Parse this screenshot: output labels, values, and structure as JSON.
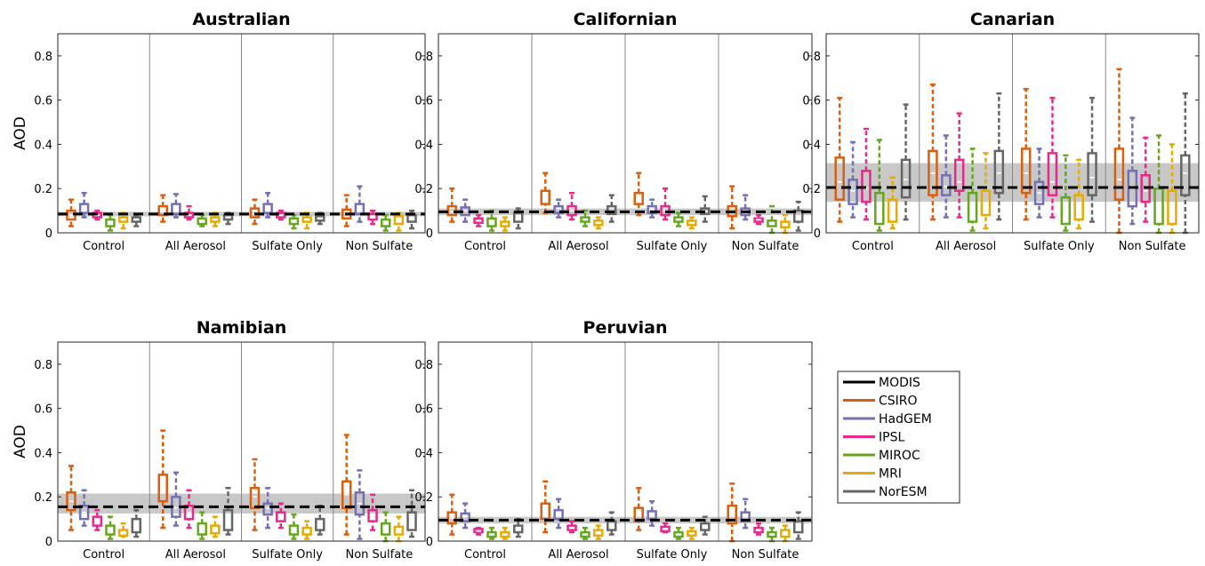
{
  "chart_data": {
    "type": "boxplot",
    "ylabel": "AOD",
    "ylim": [
      0,
      0.9
    ],
    "yticks": [
      0,
      0.2,
      0.4,
      0.6,
      0.8
    ],
    "categories": [
      "Control",
      "All Aerosol",
      "Sulfate Only",
      "Non Sulfate"
    ],
    "models": [
      "CSIRO",
      "HadGEM",
      "IPSL",
      "MIROC",
      "MRI",
      "NorESM"
    ],
    "legend": {
      "placement": "right",
      "entries": [
        {
          "name": "MODIS",
          "color": "#000000",
          "style": "line"
        },
        {
          "name": "CSIRO",
          "color": "#D95F0E"
        },
        {
          "name": "HadGEM",
          "color": "#7570B3"
        },
        {
          "name": "IPSL",
          "color": "#E7298A"
        },
        {
          "name": "MIROC",
          "color": "#66A61E"
        },
        {
          "name": "MRI",
          "color": "#E6AB02"
        },
        {
          "name": "NorESM",
          "color": "#666666"
        }
      ]
    },
    "panels": [
      {
        "title": "Australian",
        "modis": {
          "median": 0.085,
          "band": [
            0.075,
            0.095
          ]
        },
        "groups": [
          [
            [
              0.03,
              0.06,
              0.08,
              0.1,
              0.15
            ],
            [
              0.07,
              0.09,
              0.105,
              0.13,
              0.18
            ],
            [
              0.06,
              0.07,
              0.08,
              0.09,
              0.1
            ],
            [
              0.01,
              0.03,
              0.045,
              0.06,
              0.08
            ],
            [
              0.02,
              0.05,
              0.06,
              0.07,
              0.09
            ],
            [
              0.03,
              0.05,
              0.06,
              0.07,
              0.08
            ]
          ],
          [
            [
              0.05,
              0.08,
              0.095,
              0.12,
              0.17
            ],
            [
              0.07,
              0.085,
              0.1,
              0.13,
              0.175
            ],
            [
              0.06,
              0.07,
              0.08,
              0.09,
              0.12
            ],
            [
              0.03,
              0.04,
              0.05,
              0.065,
              0.08
            ],
            [
              0.03,
              0.05,
              0.06,
              0.07,
              0.09
            ],
            [
              0.04,
              0.06,
              0.07,
              0.08,
              0.09
            ]
          ],
          [
            [
              0.04,
              0.07,
              0.085,
              0.11,
              0.15
            ],
            [
              0.07,
              0.09,
              0.105,
              0.13,
              0.18
            ],
            [
              0.06,
              0.07,
              0.08,
              0.09,
              0.1
            ],
            [
              0.02,
              0.04,
              0.05,
              0.065,
              0.08
            ],
            [
              0.02,
              0.05,
              0.06,
              0.07,
              0.09
            ],
            [
              0.04,
              0.055,
              0.065,
              0.075,
              0.09
            ]
          ],
          [
            [
              0.03,
              0.065,
              0.085,
              0.105,
              0.17
            ],
            [
              0.05,
              0.085,
              0.105,
              0.13,
              0.21
            ],
            [
              0.04,
              0.06,
              0.075,
              0.085,
              0.1
            ],
            [
              0.01,
              0.03,
              0.045,
              0.06,
              0.08
            ],
            [
              0.01,
              0.04,
              0.06,
              0.075,
              0.09
            ],
            [
              0.02,
              0.05,
              0.065,
              0.08,
              0.1
            ]
          ]
        ]
      },
      {
        "title": "Californian",
        "modis": {
          "median": 0.095,
          "band": [
            0.08,
            0.11
          ]
        },
        "groups": [
          [
            [
              0.05,
              0.08,
              0.095,
              0.12,
              0.2
            ],
            [
              0.05,
              0.08,
              0.1,
              0.115,
              0.15
            ],
            [
              0.03,
              0.045,
              0.055,
              0.065,
              0.08
            ],
            [
              0.01,
              0.03,
              0.045,
              0.065,
              0.1
            ],
            [
              0.01,
              0.03,
              0.04,
              0.05,
              0.07
            ],
            [
              0.02,
              0.05,
              0.07,
              0.09,
              0.11
            ]
          ],
          [
            [
              0.09,
              0.13,
              0.16,
              0.19,
              0.27
            ],
            [
              0.07,
              0.09,
              0.11,
              0.12,
              0.15
            ],
            [
              0.06,
              0.08,
              0.1,
              0.12,
              0.18
            ],
            [
              0.03,
              0.05,
              0.06,
              0.07,
              0.1
            ],
            [
              0.02,
              0.035,
              0.045,
              0.055,
              0.07
            ],
            [
              0.05,
              0.085,
              0.1,
              0.12,
              0.17
            ]
          ],
          [
            [
              0.08,
              0.13,
              0.16,
              0.18,
              0.27
            ],
            [
              0.07,
              0.09,
              0.105,
              0.12,
              0.15
            ],
            [
              0.06,
              0.08,
              0.1,
              0.12,
              0.2
            ],
            [
              0.03,
              0.05,
              0.06,
              0.07,
              0.09
            ],
            [
              0.02,
              0.035,
              0.045,
              0.055,
              0.07
            ],
            [
              0.05,
              0.085,
              0.095,
              0.11,
              0.165
            ]
          ],
          [
            [
              0.02,
              0.075,
              0.1,
              0.12,
              0.21
            ],
            [
              0.06,
              0.08,
              0.095,
              0.11,
              0.17
            ],
            [
              0.04,
              0.05,
              0.06,
              0.065,
              0.08
            ],
            [
              0.0,
              0.03,
              0.045,
              0.055,
              0.12
            ],
            [
              0.0,
              0.025,
              0.04,
              0.05,
              0.08
            ],
            [
              0.01,
              0.05,
              0.075,
              0.1,
              0.14
            ]
          ]
        ]
      },
      {
        "title": "Canarian",
        "modis": {
          "median": 0.205,
          "band": [
            0.14,
            0.315
          ]
        },
        "groups": [
          [
            [
              0.05,
              0.15,
              0.23,
              0.34,
              0.61
            ],
            [
              0.07,
              0.13,
              0.19,
              0.24,
              0.41
            ],
            [
              0.06,
              0.14,
              0.2,
              0.28,
              0.47
            ],
            [
              0.01,
              0.04,
              0.09,
              0.18,
              0.42
            ],
            [
              0.02,
              0.05,
              0.08,
              0.15,
              0.25
            ],
            [
              0.06,
              0.16,
              0.24,
              0.33,
              0.58
            ]
          ],
          [
            [
              0.06,
              0.17,
              0.27,
              0.37,
              0.67
            ],
            [
              0.07,
              0.17,
              0.21,
              0.26,
              0.44
            ],
            [
              0.07,
              0.19,
              0.23,
              0.33,
              0.54
            ],
            [
              0.01,
              0.05,
              0.08,
              0.18,
              0.38
            ],
            [
              0.02,
              0.08,
              0.12,
              0.19,
              0.36
            ],
            [
              0.06,
              0.18,
              0.27,
              0.37,
              0.63
            ]
          ],
          [
            [
              0.06,
              0.18,
              0.27,
              0.38,
              0.65
            ],
            [
              0.07,
              0.13,
              0.18,
              0.23,
              0.38
            ],
            [
              0.07,
              0.17,
              0.23,
              0.36,
              0.61
            ],
            [
              0.01,
              0.04,
              0.08,
              0.16,
              0.35
            ],
            [
              0.02,
              0.06,
              0.1,
              0.17,
              0.33
            ],
            [
              0.05,
              0.17,
              0.25,
              0.36,
              0.61
            ]
          ],
          [
            [
              0.0,
              0.15,
              0.24,
              0.38,
              0.74
            ],
            [
              0.04,
              0.12,
              0.2,
              0.28,
              0.52
            ],
            [
              0.05,
              0.14,
              0.19,
              0.26,
              0.43
            ],
            [
              0.0,
              0.04,
              0.07,
              0.2,
              0.44
            ],
            [
              0.0,
              0.04,
              0.07,
              0.19,
              0.4
            ],
            [
              0.0,
              0.17,
              0.27,
              0.35,
              0.63
            ]
          ]
        ]
      },
      {
        "title": "Namibian",
        "modis": {
          "median": 0.155,
          "band": [
            0.125,
            0.215
          ]
        },
        "groups": [
          [
            [
              0.05,
              0.14,
              0.18,
              0.22,
              0.34
            ],
            [
              0.07,
              0.1,
              0.13,
              0.16,
              0.23
            ],
            [
              0.05,
              0.07,
              0.09,
              0.11,
              0.14
            ],
            [
              0.01,
              0.03,
              0.045,
              0.07,
              0.11
            ],
            [
              0.02,
              0.025,
              0.035,
              0.05,
              0.08
            ],
            [
              0.02,
              0.04,
              0.07,
              0.1,
              0.14
            ]
          ],
          [
            [
              0.06,
              0.18,
              0.24,
              0.3,
              0.5
            ],
            [
              0.07,
              0.11,
              0.15,
              0.2,
              0.31
            ],
            [
              0.06,
              0.1,
              0.13,
              0.16,
              0.23
            ],
            [
              0.01,
              0.03,
              0.055,
              0.08,
              0.13
            ],
            [
              0.02,
              0.035,
              0.05,
              0.07,
              0.11
            ],
            [
              0.03,
              0.05,
              0.08,
              0.14,
              0.24
            ]
          ],
          [
            [
              0.05,
              0.15,
              0.2,
              0.24,
              0.37
            ],
            [
              0.06,
              0.12,
              0.15,
              0.17,
              0.24
            ],
            [
              0.06,
              0.09,
              0.11,
              0.13,
              0.17
            ],
            [
              0.01,
              0.03,
              0.05,
              0.07,
              0.12
            ],
            [
              0.01,
              0.03,
              0.045,
              0.06,
              0.09
            ],
            [
              0.03,
              0.05,
              0.075,
              0.1,
              0.16
            ]
          ],
          [
            [
              0.03,
              0.15,
              0.21,
              0.27,
              0.48
            ],
            [
              0.01,
              0.12,
              0.17,
              0.22,
              0.32
            ],
            [
              0.05,
              0.09,
              0.115,
              0.14,
              0.21
            ],
            [
              0.0,
              0.03,
              0.055,
              0.08,
              0.13
            ],
            [
              0.0,
              0.03,
              0.05,
              0.065,
              0.11
            ],
            [
              0.02,
              0.05,
              0.08,
              0.13,
              0.23
            ]
          ]
        ]
      },
      {
        "title": "Peruvian",
        "modis": {
          "median": 0.095,
          "band": [
            0.08,
            0.11
          ]
        },
        "groups": [
          [
            [
              0.03,
              0.08,
              0.105,
              0.13,
              0.21
            ],
            [
              0.06,
              0.09,
              0.11,
              0.125,
              0.17
            ],
            [
              0.03,
              0.04,
              0.045,
              0.055,
              0.06
            ],
            [
              0.01,
              0.02,
              0.03,
              0.04,
              0.06
            ],
            [
              0.01,
              0.02,
              0.03,
              0.04,
              0.06
            ],
            [
              0.02,
              0.04,
              0.055,
              0.07,
              0.1
            ]
          ],
          [
            [
              0.04,
              0.1,
              0.14,
              0.17,
              0.27
            ],
            [
              0.06,
              0.1,
              0.12,
              0.14,
              0.19
            ],
            [
              0.04,
              0.05,
              0.06,
              0.07,
              0.09
            ],
            [
              0.01,
              0.02,
              0.03,
              0.04,
              0.06
            ],
            [
              0.01,
              0.025,
              0.035,
              0.05,
              0.07
            ],
            [
              0.03,
              0.05,
              0.07,
              0.09,
              0.13
            ]
          ],
          [
            [
              0.05,
              0.09,
              0.12,
              0.15,
              0.24
            ],
            [
              0.07,
              0.1,
              0.12,
              0.135,
              0.18
            ],
            [
              0.04,
              0.045,
              0.055,
              0.065,
              0.08
            ],
            [
              0.01,
              0.02,
              0.03,
              0.04,
              0.06
            ],
            [
              0.01,
              0.025,
              0.035,
              0.045,
              0.06
            ],
            [
              0.03,
              0.05,
              0.065,
              0.08,
              0.11
            ]
          ],
          [
            [
              0.0,
              0.08,
              0.12,
              0.16,
              0.26
            ],
            [
              0.06,
              0.09,
              0.11,
              0.13,
              0.19
            ],
            [
              0.03,
              0.04,
              0.05,
              0.06,
              0.08
            ],
            [
              0.0,
              0.02,
              0.03,
              0.04,
              0.06
            ],
            [
              0.0,
              0.02,
              0.03,
              0.05,
              0.07
            ],
            [
              0.01,
              0.04,
              0.065,
              0.09,
              0.13
            ]
          ]
        ]
      }
    ]
  }
}
